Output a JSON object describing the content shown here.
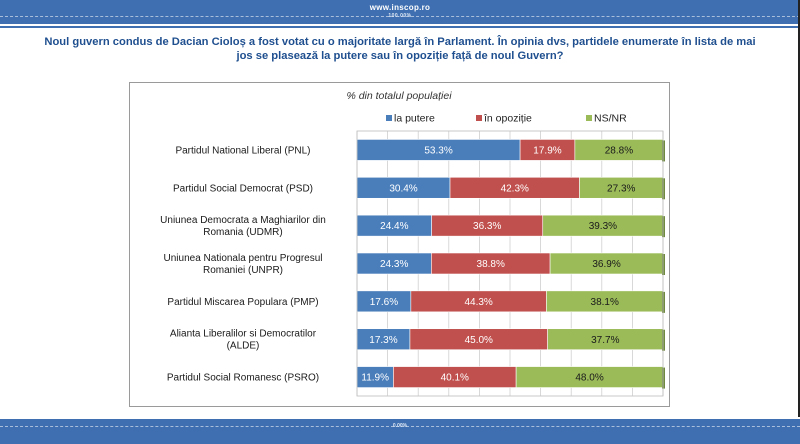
{
  "header": {
    "site": "www.inscop.ro",
    "tagline": "100.00%"
  },
  "question": "Noul guvern condus de Dacian Cioloș a fost votat cu o majoritate largă în Parlament. În opinia dvs, partidele enumerate în lista de mai jos se plasează la putere sau în opoziție față de noul Guvern?",
  "footer": {
    "tagline": "0.00%"
  },
  "colors": {
    "putere": "#4a7ebb",
    "opozitie": "#c0504d",
    "nsnr": "#9bbb59"
  },
  "chart_data": {
    "type": "bar",
    "orientation": "horizontal",
    "stacked": true,
    "title": "% din totalul populației",
    "xlabel": "",
    "ylabel": "",
    "xlim": [
      0,
      100
    ],
    "grid": true,
    "legend_position": "top",
    "categories": [
      "Partidul National Liberal (PNL)",
      "Partidul Social Democrat (PSD)",
      "Uniunea Democrata a Maghiarilor din Romania (UDMR)",
      "Uniunea Nationala pentru Progresul Romaniei (UNPR)",
      "Partidul Miscarea Populara (PMP)",
      "Alianta Liberalilor si Democratilor (ALDE)",
      "Partidul Social Romanesc (PSRO)"
    ],
    "series": [
      {
        "name": "la putere",
        "values": [
          53.3,
          30.4,
          24.4,
          24.3,
          17.6,
          17.3,
          11.9
        ],
        "labels": [
          "53.3%",
          "30.4%",
          "24.4%",
          "24.3%",
          "17.6%",
          "17.3%",
          "11.9%"
        ]
      },
      {
        "name": "în opoziție",
        "values": [
          17.9,
          42.3,
          36.3,
          38.8,
          44.3,
          45.0,
          40.1
        ],
        "labels": [
          "17.9%",
          "42.3%",
          "36.3%",
          "38.8%",
          "44.3%",
          "45.0%",
          "40.1%"
        ]
      },
      {
        "name": "NS/NR",
        "values": [
          28.8,
          27.3,
          39.3,
          36.9,
          38.1,
          37.7,
          48.0
        ],
        "labels": [
          "28.8%",
          "27.3%",
          "39.3%",
          "36.9%",
          "38.1%",
          "37.7%",
          "48.0%"
        ]
      }
    ]
  }
}
